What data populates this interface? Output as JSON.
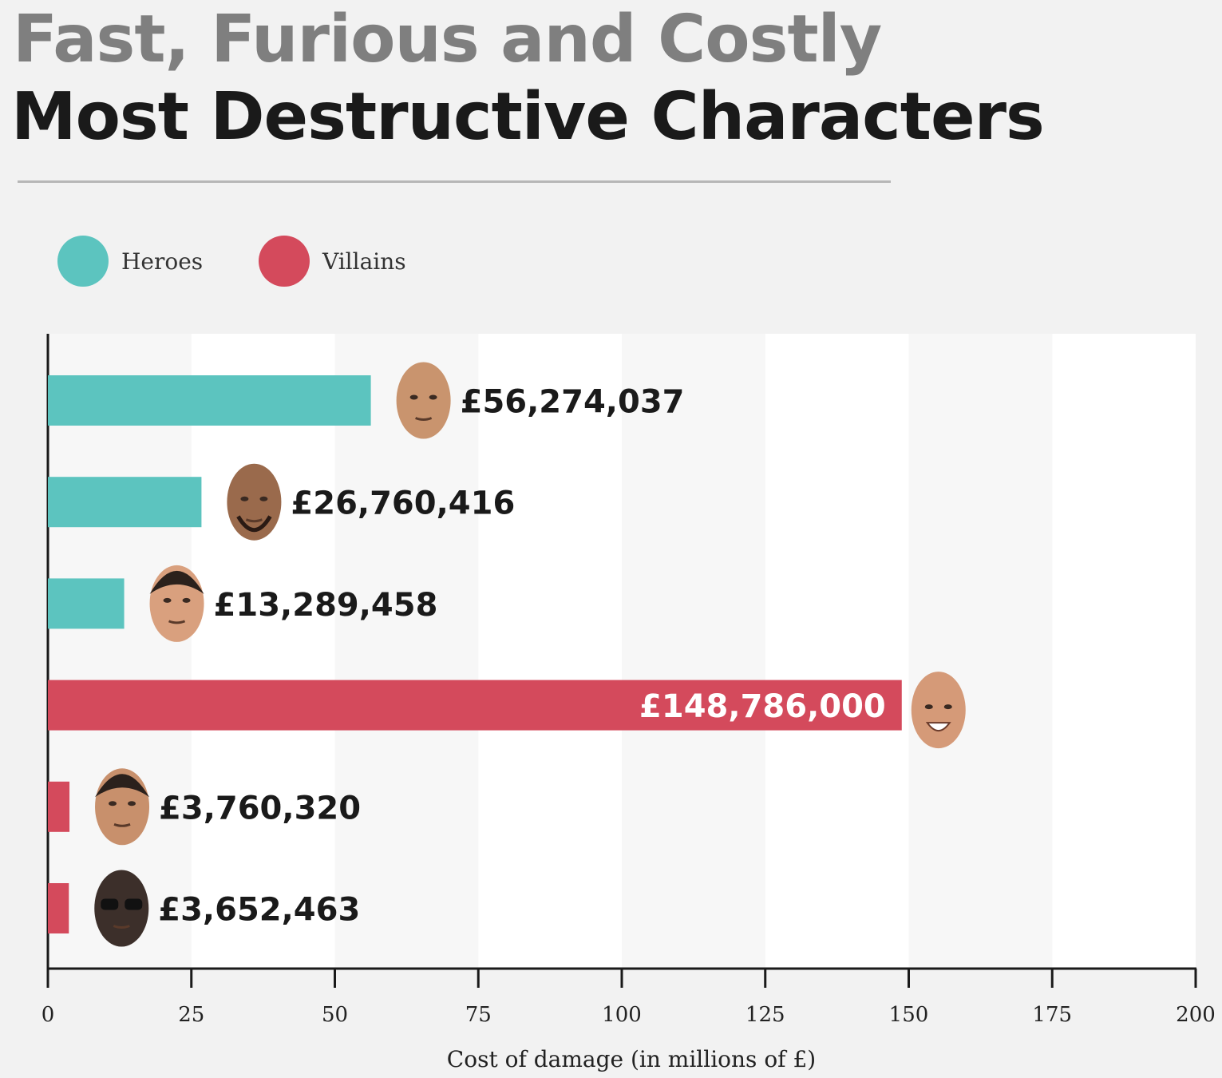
{
  "header": {
    "title": "Fast, Furious and Costly",
    "subtitle": "Most Destructive Characters"
  },
  "legend": {
    "items": [
      {
        "label": "Heroes",
        "color": "#5cc4bf"
      },
      {
        "label": "Villains",
        "color": "#d44a5c"
      }
    ]
  },
  "chart_data": {
    "type": "bar",
    "orientation": "horizontal",
    "xlabel": "Cost of damage (in millions of £)",
    "xlim": [
      0,
      200
    ],
    "xticks": [
      "0",
      "25",
      "50",
      "75",
      "100",
      "125",
      "150",
      "175",
      "200"
    ],
    "legend_position": "top-left",
    "bars": [
      {
        "group": "Heroes",
        "value": 56.274037,
        "label": "£56,274,037",
        "color": "#5cc4bf",
        "icon": "bald-man-face-icon"
      },
      {
        "group": "Heroes",
        "value": 26.760416,
        "label": "£26,760,416",
        "color": "#5cc4bf",
        "icon": "bald-bearded-man-face-icon"
      },
      {
        "group": "Heroes",
        "value": 13.289458,
        "label": "£13,289,458",
        "color": "#5cc4bf",
        "icon": "short-haired-man-face-icon"
      },
      {
        "group": "Villains",
        "value": 148.786,
        "label": "£148,786,000",
        "color": "#d44a5c",
        "icon": "laughing-bald-man-face-icon"
      },
      {
        "group": "Villains",
        "value": 3.76032,
        "label": "£3,760,320",
        "color": "#d44a5c",
        "icon": "dark-haired-man-face-icon"
      },
      {
        "group": "Villains",
        "value": 3.652463,
        "label": "£3,652,463",
        "color": "#d44a5c",
        "icon": "man-with-sunglasses-face-icon"
      }
    ]
  }
}
